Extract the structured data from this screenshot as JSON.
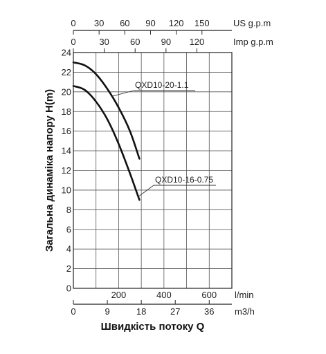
{
  "chart_data": {
    "type": "line",
    "ylabel": "Загальна динаміка напору H(m)",
    "xlabel": "Швидкість потоку Q",
    "grid": true,
    "y_axis": {
      "unit": "m",
      "range": [
        0,
        24
      ],
      "ticks": [
        "0",
        "2",
        "4",
        "6",
        "8",
        "10",
        "12",
        "14",
        "16",
        "18",
        "20",
        "22",
        "24"
      ]
    },
    "x_axes": {
      "lpm": {
        "unit": "l/min",
        "range": [
          0,
          700
        ],
        "ticks": [
          200,
          400,
          600
        ],
        "tick_labels": [
          "200",
          "400",
          "600"
        ]
      },
      "m3h": {
        "unit": "m3/h",
        "range": [
          0,
          42
        ],
        "ticks": [
          0,
          9,
          18,
          27,
          36
        ],
        "tick_labels": [
          "0",
          "9",
          "18",
          "27",
          "36"
        ]
      },
      "us_gpm": {
        "unit": "US g.p.m",
        "range": [
          0,
          184.9
        ],
        "ticks": [
          0,
          30,
          60,
          90,
          120,
          150
        ],
        "tick_labels": [
          "0",
          "30",
          "60",
          "90",
          "120",
          "150"
        ]
      },
      "imp_gpm": {
        "unit": "Imp g.p.m",
        "range": [
          0,
          154
        ],
        "ticks": [
          0,
          30,
          60,
          90,
          120
        ],
        "tick_labels": [
          "0",
          "30",
          "60",
          "90",
          "120"
        ]
      }
    },
    "series": [
      {
        "name": "QXD10-20-1.1",
        "x_unit": "m3/h",
        "points": [
          [
            0,
            23.0
          ],
          [
            3,
            22.7
          ],
          [
            6,
            21.8
          ],
          [
            9,
            20.3
          ],
          [
            12,
            18.4
          ],
          [
            15,
            16.0
          ],
          [
            17.5,
            13.2
          ]
        ]
      },
      {
        "name": "QXD10-16-0.75",
        "x_unit": "m3/h",
        "points": [
          [
            0,
            20.6
          ],
          [
            3,
            20.2
          ],
          [
            6,
            19.0
          ],
          [
            9,
            17.2
          ],
          [
            12,
            14.7
          ],
          [
            15,
            11.7
          ],
          [
            17.5,
            9.0
          ]
        ]
      }
    ]
  }
}
